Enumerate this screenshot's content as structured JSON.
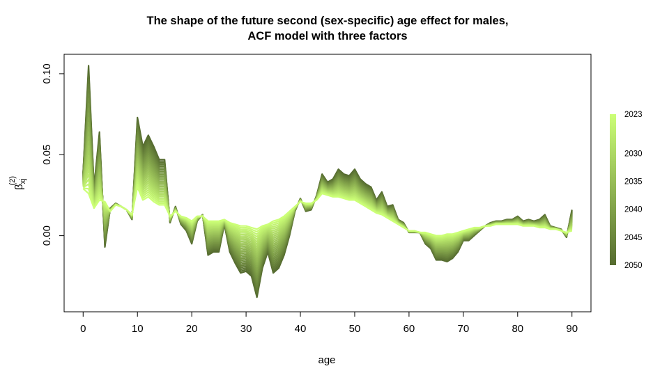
{
  "chart_data": {
    "type": "line",
    "title_lines": [
      "The shape of the future second (sex-specific) age effect for males,",
      "ACF model with three factors"
    ],
    "xlabel": "age",
    "ylabel": "β",
    "ylabel_sub": "xj",
    "ylabel_sup": "(2)",
    "xlim": [
      -3.5,
      93.5
    ],
    "ylim": [
      -0.047,
      0.112
    ],
    "x_ticks": [
      0,
      10,
      20,
      30,
      40,
      50,
      60,
      70,
      80,
      90
    ],
    "y_ticks": [
      0.0,
      0.05,
      0.1
    ],
    "y_tick_labels": [
      "0.00",
      "0.05",
      "0.10"
    ],
    "series_years": [
      2023,
      2050
    ],
    "color_start": "#ccff77",
    "color_end": "#556b2f",
    "x": [
      0,
      1,
      2,
      3,
      4,
      5,
      6,
      7,
      8,
      9,
      10,
      11,
      12,
      13,
      14,
      15,
      16,
      17,
      18,
      19,
      20,
      21,
      22,
      23,
      24,
      25,
      26,
      27,
      28,
      29,
      30,
      31,
      32,
      33,
      34,
      35,
      36,
      37,
      38,
      39,
      40,
      41,
      42,
      43,
      44,
      45,
      46,
      47,
      48,
      49,
      50,
      51,
      52,
      53,
      54,
      55,
      56,
      57,
      58,
      59,
      60,
      61,
      62,
      63,
      64,
      65,
      66,
      67,
      68,
      69,
      70,
      71,
      72,
      73,
      74,
      75,
      76,
      77,
      78,
      79,
      80,
      81,
      82,
      83,
      84,
      85,
      86,
      87,
      88,
      89,
      90
    ],
    "values_2050": [
      0.039,
      0.105,
      0.03,
      0.064,
      -0.007,
      0.017,
      0.02,
      0.018,
      0.016,
      0.01,
      0.073,
      0.055,
      0.062,
      0.055,
      0.047,
      0.047,
      0.008,
      0.018,
      0.007,
      0.003,
      -0.005,
      0.009,
      0.013,
      -0.012,
      -0.01,
      -0.01,
      0.007,
      -0.01,
      -0.017,
      -0.023,
      -0.022,
      -0.025,
      -0.038,
      -0.02,
      -0.01,
      -0.023,
      -0.02,
      -0.012,
      0.0,
      0.015,
      0.023,
      0.015,
      0.016,
      0.025,
      0.038,
      0.033,
      0.035,
      0.041,
      0.038,
      0.037,
      0.041,
      0.035,
      0.032,
      0.03,
      0.022,
      0.027,
      0.018,
      0.019,
      0.01,
      0.008,
      0.002,
      0.002,
      0.002,
      -0.005,
      -0.008,
      -0.015,
      -0.015,
      -0.016,
      -0.014,
      -0.01,
      -0.003,
      -0.003,
      0.0,
      0.003,
      0.006,
      0.008,
      0.009,
      0.009,
      0.01,
      0.01,
      0.012,
      0.009,
      0.01,
      0.009,
      0.01,
      0.013,
      0.006,
      0.005,
      0.004,
      -0.001,
      0.016
    ],
    "values_2023": [
      0.029,
      0.026,
      0.017,
      0.022,
      0.021,
      0.015,
      0.019,
      0.018,
      0.016,
      0.013,
      0.03,
      0.022,
      0.024,
      0.021,
      0.019,
      0.019,
      0.012,
      0.015,
      0.012,
      0.011,
      0.009,
      0.012,
      0.012,
      0.009,
      0.009,
      0.009,
      0.01,
      0.008,
      0.007,
      0.006,
      0.006,
      0.005,
      0.004,
      0.006,
      0.007,
      0.009,
      0.01,
      0.012,
      0.015,
      0.018,
      0.021,
      0.02,
      0.02,
      0.022,
      0.026,
      0.025,
      0.024,
      0.024,
      0.023,
      0.022,
      0.022,
      0.02,
      0.018,
      0.016,
      0.014,
      0.013,
      0.011,
      0.009,
      0.007,
      0.005,
      0.003,
      0.003,
      0.002,
      0.002,
      0.001,
      0.0,
      0.0,
      0.001,
      0.001,
      0.002,
      0.003,
      0.004,
      0.005,
      0.005,
      0.006,
      0.006,
      0.007,
      0.007,
      0.007,
      0.007,
      0.007,
      0.006,
      0.006,
      0.006,
      0.005,
      0.005,
      0.004,
      0.004,
      0.003,
      0.002,
      0.003
    ],
    "legend": {
      "placement": "right",
      "labels": [
        "2023",
        "2030",
        "2035",
        "2040",
        "2045",
        "2050"
      ],
      "label_years": [
        2023,
        2030,
        2035,
        2040,
        2045,
        2050
      ]
    },
    "grid": false
  }
}
